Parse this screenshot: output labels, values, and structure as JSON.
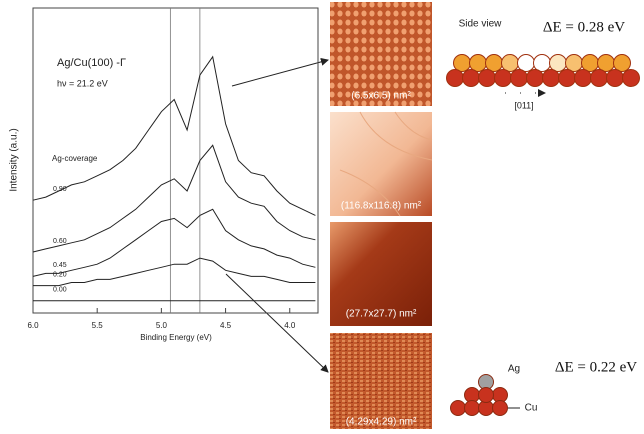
{
  "chart_data": {
    "type": "line",
    "title": "Ag/Cu(100) -Γ",
    "subtitle": "hν = 21.2 eV",
    "legend_title": "Ag-coverage",
    "x_label": "Binding Energy (eV)",
    "y_label": "Intensity (a.u.)",
    "x": [
      6.0,
      5.9,
      5.8,
      5.7,
      5.6,
      5.5,
      5.4,
      5.3,
      5.2,
      5.1,
      5.0,
      4.9,
      4.8,
      4.7,
      4.6,
      4.5,
      4.4,
      4.3,
      4.2,
      4.1,
      4.0,
      3.9,
      3.8
    ],
    "series": [
      {
        "name": "0.90",
        "color": "#222222",
        "values": [
          37,
          38,
          40,
          42,
          43,
          45,
          47,
          50,
          54,
          60,
          66,
          70,
          60,
          78,
          84,
          62,
          50,
          46,
          45,
          40,
          36,
          34,
          32
        ]
      },
      {
        "name": "0.60",
        "color": "#222222",
        "values": [
          20,
          21,
          22,
          23,
          24,
          26,
          28,
          31,
          34,
          38,
          42,
          44,
          40,
          50,
          55,
          43,
          38,
          36,
          35,
          30,
          27,
          25,
          24
        ]
      },
      {
        "name": "0.45",
        "color": "#222222",
        "values": [
          12,
          13,
          13,
          14,
          15,
          16,
          18,
          21,
          24,
          27,
          30,
          31,
          28,
          32,
          34,
          27,
          24,
          22,
          21,
          19,
          18,
          16,
          15
        ]
      },
      {
        "name": "0.20",
        "color": "#222222",
        "values": [
          9,
          9,
          9,
          10,
          10,
          11,
          11,
          12,
          13,
          14,
          15,
          16,
          16,
          18,
          17,
          14,
          13,
          12,
          12,
          11,
          10,
          10,
          10
        ]
      },
      {
        "name": "0.00",
        "color": "#222222",
        "values": [
          4,
          4,
          4,
          4,
          4,
          4,
          4,
          4,
          4,
          4,
          4,
          4,
          4,
          4,
          4,
          4,
          4,
          4,
          4,
          4,
          4,
          4,
          4
        ]
      }
    ],
    "xlim": [
      6.0,
      3.78
    ],
    "ylim": [
      0,
      100
    ],
    "xticks": [
      {
        "value": 6,
        "label": "6.0"
      },
      5.5,
      {
        "value": 5,
        "label": "5.0"
      },
      4.5,
      {
        "value": 4,
        "label": "4.0"
      }
    ],
    "vlines": [
      4.93,
      4.7
    ]
  },
  "images": [
    {
      "label": "(6.5x6.5) nm²"
    },
    {
      "label": "(116.8x116.8) nm²"
    },
    {
      "label": "(27.7x27.7) nm²"
    },
    {
      "label": "(4.29x4.29) nm²"
    }
  ],
  "models": [
    {
      "view": "Side view",
      "energy": "ΔE = 0.28 eV",
      "direction": "[011]"
    },
    {
      "energy": "ΔE = 0.22 eV",
      "adatom": "Ag",
      "substrate": "Cu"
    }
  ]
}
